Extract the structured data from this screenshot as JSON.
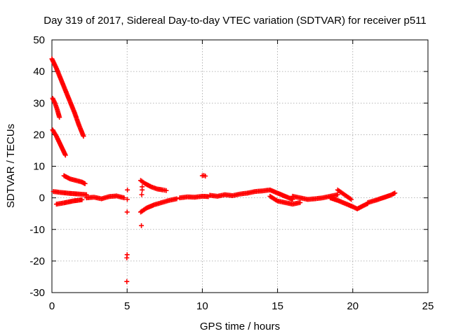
{
  "chart_data": {
    "type": "scatter",
    "title": "Day 319 of 2017, Sidereal Day-to-day VTEC variation (SDTVAR) for receiver p511",
    "xlabel": "GPS time / hours",
    "ylabel": "SDTVAR / TECUs",
    "xlim": [
      0,
      25
    ],
    "ylim": [
      -30,
      50
    ],
    "xticks": [
      0,
      5,
      10,
      15,
      20,
      25
    ],
    "yticks": [
      -30,
      -20,
      -10,
      0,
      10,
      20,
      30,
      40,
      50
    ],
    "grid": true,
    "marker": "+",
    "series_color": "#ff0000",
    "segments": [
      {
        "name": "arc-44",
        "x": [
          0.0,
          0.3,
          0.6,
          0.9,
          1.2,
          1.5,
          1.8,
          2.1
        ],
        "y": [
          44.0,
          41.0,
          37.5,
          34.0,
          30.5,
          27.0,
          23.0,
          19.5
        ]
      },
      {
        "name": "arc-31",
        "x": [
          0.05,
          0.2,
          0.35,
          0.5
        ],
        "y": [
          31.5,
          30.0,
          28.0,
          25.5
        ]
      },
      {
        "name": "arc-21",
        "x": [
          0.05,
          0.3,
          0.6,
          0.9
        ],
        "y": [
          21.5,
          19.5,
          16.5,
          13.5
        ]
      },
      {
        "name": "arc-7",
        "x": [
          0.8,
          1.2,
          1.6,
          2.0,
          2.2
        ],
        "y": [
          7.0,
          6.0,
          5.5,
          5.0,
          4.5
        ]
      },
      {
        "name": "band-upper-left",
        "x": [
          0.1,
          0.6,
          1.2,
          1.8,
          2.3
        ],
        "y": [
          2.0,
          1.7,
          1.4,
          1.2,
          1.0
        ]
      },
      {
        "name": "band-lower-left",
        "x": [
          0.3,
          0.8,
          1.4,
          2.0
        ],
        "y": [
          -2.0,
          -1.6,
          -1.0,
          -0.6
        ]
      },
      {
        "name": "band-mid",
        "x": [
          2.3,
          2.8,
          3.3,
          3.8,
          4.3,
          4.8
        ],
        "y": [
          0.0,
          0.2,
          -0.3,
          0.4,
          0.6,
          0.0
        ]
      },
      {
        "name": "spikes-5h",
        "x": [
          4.98,
          4.98,
          5.0,
          5.0,
          5.01,
          5.02
        ],
        "y": [
          -26.5,
          -19.0,
          -18.0,
          -4.5,
          -0.5,
          2.5
        ]
      },
      {
        "name": "spikes-6h",
        "x": [
          5.95,
          5.97,
          6.0,
          6.0
        ],
        "y": [
          -8.8,
          1.0,
          2.5,
          3.5
        ]
      },
      {
        "name": "arc-upper-6h",
        "x": [
          5.9,
          6.2,
          6.6,
          7.0,
          7.4,
          7.6
        ],
        "y": [
          5.5,
          4.5,
          3.5,
          2.8,
          2.5,
          2.3
        ]
      },
      {
        "name": "arc-lower-6h",
        "x": [
          5.9,
          6.3,
          6.8,
          7.3,
          7.8,
          8.3
        ],
        "y": [
          -4.5,
          -3.2,
          -2.2,
          -1.5,
          -0.8,
          -0.3
        ]
      },
      {
        "name": "band-8-10",
        "x": [
          8.5,
          9.0,
          9.5,
          10.0,
          10.4
        ],
        "y": [
          0.0,
          0.3,
          0.2,
          0.5,
          0.4
        ]
      },
      {
        "name": "cluster-10h",
        "x": [
          10.0,
          10.1,
          10.2
        ],
        "y": [
          7.0,
          7.1,
          6.9
        ]
      },
      {
        "name": "band-10-13",
        "x": [
          10.5,
          11.0,
          11.5,
          12.0,
          12.5,
          13.0
        ],
        "y": [
          0.8,
          0.5,
          1.0,
          0.7,
          1.2,
          1.5
        ]
      },
      {
        "name": "hump-13-16",
        "x": [
          13.0,
          13.5,
          14.0,
          14.5,
          15.0,
          15.5,
          16.0
        ],
        "y": [
          1.5,
          2.0,
          2.2,
          2.5,
          1.5,
          0.5,
          -0.5
        ]
      },
      {
        "name": "band-lower-15-17",
        "x": [
          14.5,
          15.0,
          15.5,
          16.0,
          16.5
        ],
        "y": [
          0.5,
          -1.0,
          -1.5,
          -2.0,
          -1.5
        ]
      },
      {
        "name": "band-16-19",
        "x": [
          16.0,
          16.5,
          17.0,
          17.5,
          18.0,
          18.5,
          19.0
        ],
        "y": [
          0.5,
          0.0,
          -0.5,
          -0.3,
          0.0,
          0.5,
          1.0
        ]
      },
      {
        "name": "band-19-20-upper",
        "x": [
          19.0,
          19.3,
          19.6,
          19.9
        ],
        "y": [
          2.5,
          1.5,
          0.5,
          -0.5
        ]
      },
      {
        "name": "dip-20h",
        "x": [
          18.5,
          19.0,
          19.5,
          20.0,
          20.3,
          20.7,
          21.0
        ],
        "y": [
          0.0,
          -0.8,
          -1.8,
          -2.8,
          -3.5,
          -2.5,
          -1.8
        ]
      },
      {
        "name": "band-21-23",
        "x": [
          21.0,
          21.5,
          22.0,
          22.5,
          22.8
        ],
        "y": [
          -1.5,
          -0.8,
          0.0,
          0.8,
          1.5
        ]
      }
    ]
  }
}
